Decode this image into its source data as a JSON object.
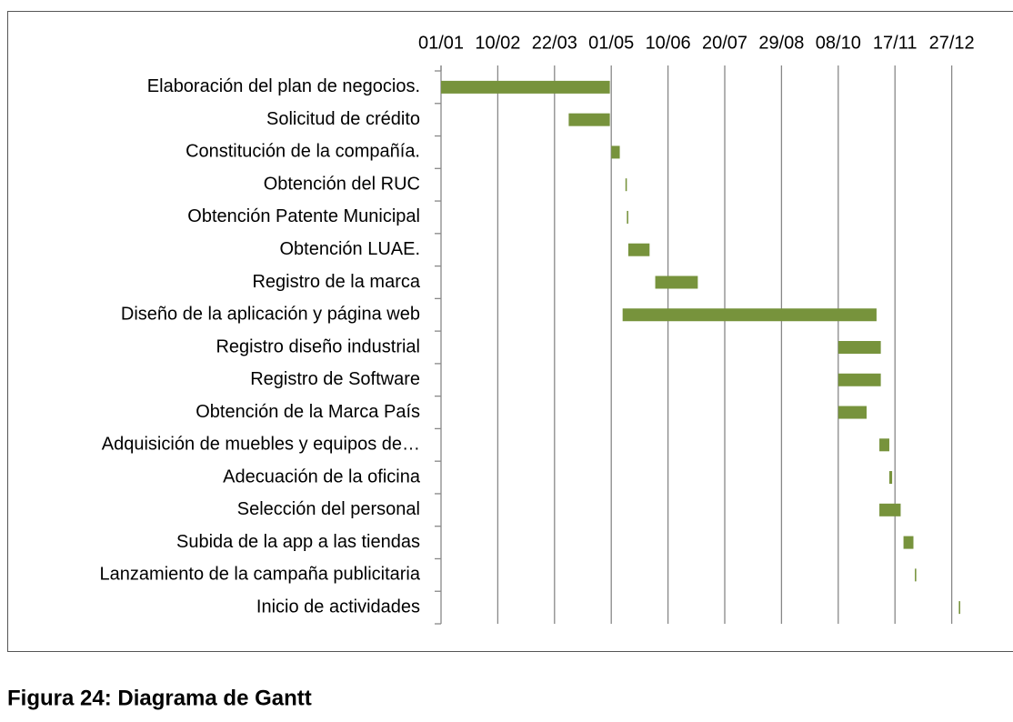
{
  "chart_data": {
    "type": "gantt",
    "caption": "Figura 24: Diagrama de Gantt",
    "categories": [
      "Elaboración del plan de negocios.",
      "Solicitud de crédito",
      "Constitución de la compañía.",
      "Obtención del RUC",
      "Obtención Patente Municipal",
      "Obtención LUAE.",
      "Registro de la marca",
      "Diseño de la aplicación y página web",
      "Registro diseño industrial",
      "Registro de Software ",
      "Obtención de la Marca País",
      "Adquisición de muebles y equipos de…",
      "Adecuación de la oficina",
      "Selección del personal",
      "Subida de la app a las tiendas",
      "Lanzamiento de la campaña publicitaria",
      "Inicio de actividades"
    ],
    "start": [
      0,
      90,
      120,
      130,
      131,
      132,
      151,
      128,
      280,
      280,
      280,
      309,
      316,
      309,
      326,
      334,
      365
    ],
    "duration": [
      119,
      29,
      6,
      1,
      1,
      15,
      30,
      179,
      30,
      30,
      20,
      7,
      2,
      15,
      7,
      1,
      1
    ],
    "color": "#77933c",
    "xlim": [
      0,
      368
    ],
    "xticks": [
      {
        "value": 0,
        "label": "01/01"
      },
      {
        "value": 40,
        "label": "10/02"
      },
      {
        "value": 80,
        "label": "22/03"
      },
      {
        "value": 120,
        "label": "01/05"
      },
      {
        "value": 160,
        "label": "10/06"
      },
      {
        "value": 200,
        "label": "20/07"
      },
      {
        "value": 240,
        "label": "29/08"
      },
      {
        "value": 280,
        "label": "08/10"
      },
      {
        "value": 320,
        "label": "17/11"
      },
      {
        "value": 360,
        "label": "27/12"
      }
    ],
    "grid": true
  }
}
